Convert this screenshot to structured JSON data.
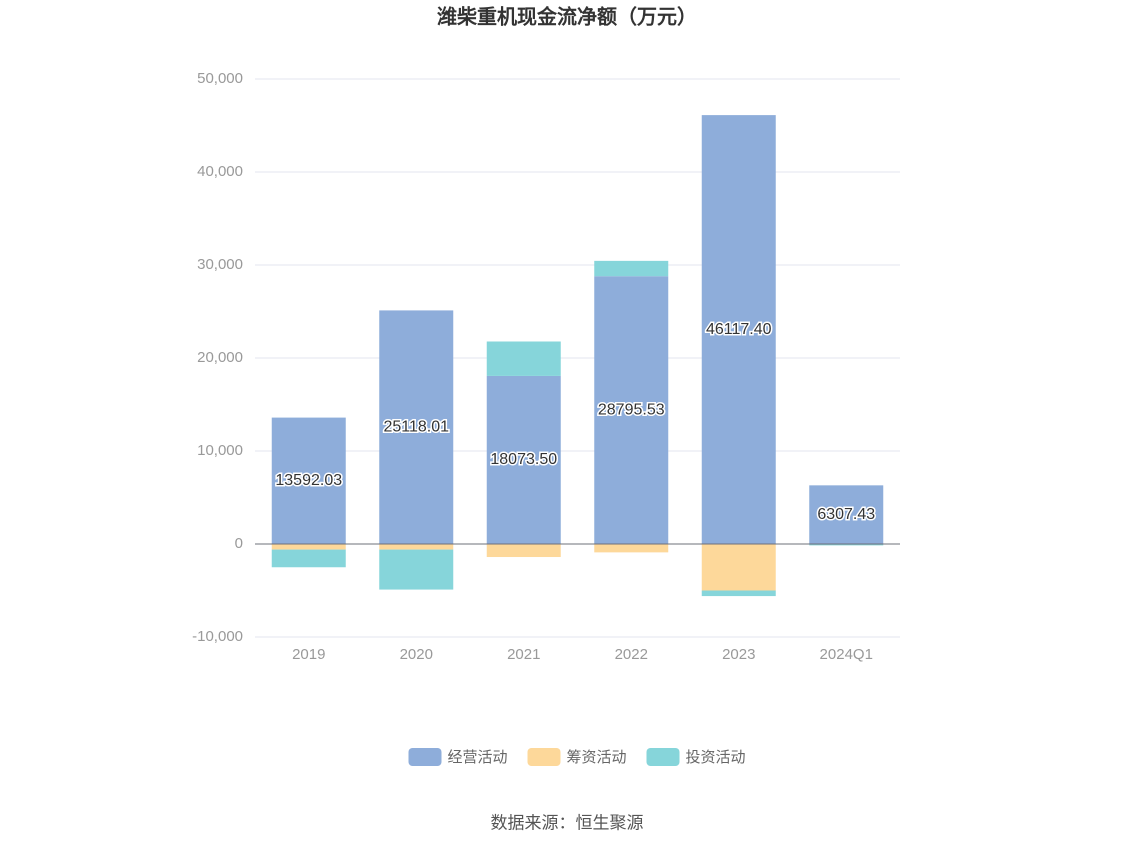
{
  "chart_data": {
    "type": "bar",
    "stacked": true,
    "title": "潍柴重机现金流净额（万元）",
    "source": "数据来源：恒生聚源",
    "categories": [
      "2019",
      "2020",
      "2021",
      "2022",
      "2023",
      "2024Q1"
    ],
    "series": [
      {
        "name": "经营活动",
        "color": "#8eadda",
        "values": [
          13592.03,
          25118.01,
          18073.5,
          28795.53,
          46117.4,
          6307.43
        ],
        "value_labels": [
          "13592.03",
          "25118.01",
          "18073.50",
          "28795.53",
          "46117.40",
          "6307.43"
        ]
      },
      {
        "name": "筹资活动",
        "color": "#fdd89a",
        "values": [
          -600,
          -600,
          -1400,
          -900,
          -5000,
          -50
        ]
      },
      {
        "name": "投资活动",
        "color": "#86d5da",
        "values": [
          -1900,
          -4300,
          3700,
          1650,
          -600,
          -100
        ]
      }
    ],
    "ylim": [
      -10000,
      50000
    ],
    "yticks": [
      {
        "value": -10000,
        "label": "-10,000"
      },
      0,
      {
        "value": 10000,
        "label": "10,000"
      },
      {
        "value": 20000,
        "label": "20,000"
      },
      {
        "value": 30000,
        "label": "30,000"
      },
      {
        "value": 40000,
        "label": "40,000"
      },
      {
        "value": 50000,
        "label": "50,000"
      }
    ],
    "grid": true,
    "legend": "bottom"
  }
}
